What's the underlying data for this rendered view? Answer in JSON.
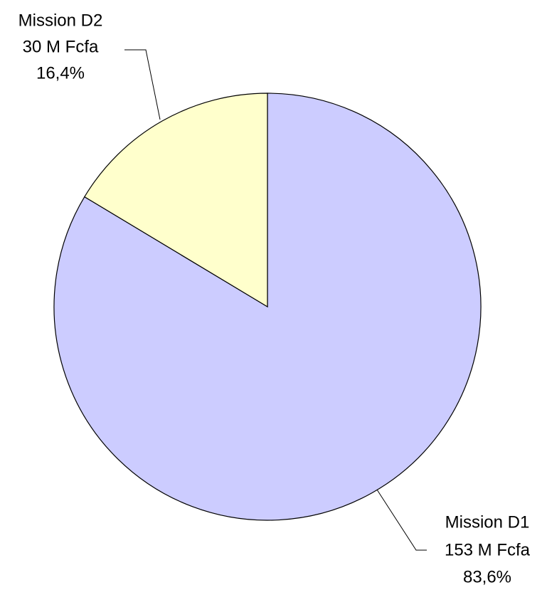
{
  "chart_data": {
    "type": "pie",
    "categories": [
      "Mission D1",
      "Mission D2"
    ],
    "values": [
      153,
      30
    ],
    "value_labels": [
      "153 M Fcfa",
      "30 M Fcfa"
    ],
    "percentages": [
      83.6,
      16.4
    ],
    "percentage_labels": [
      "83,6%",
      "16,4%"
    ],
    "colors": [
      "#ccccff",
      "#ffffcc"
    ]
  }
}
